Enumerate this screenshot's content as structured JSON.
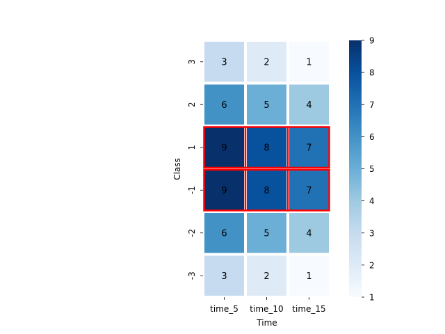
{
  "chart_data": {
    "type": "heatmap",
    "title": "",
    "xlabel": "Time",
    "ylabel": "Class",
    "x_categories": [
      "time_5",
      "time_10",
      "time_15"
    ],
    "y_categories": [
      "3",
      "2",
      "1",
      "-1",
      "-2",
      "-3"
    ],
    "values": [
      [
        3,
        2,
        1
      ],
      [
        6,
        5,
        4
      ],
      [
        9,
        8,
        7
      ],
      [
        9,
        8,
        7
      ],
      [
        6,
        5,
        4
      ],
      [
        3,
        2,
        1
      ]
    ],
    "colormap": "Blues",
    "color_range": [
      1,
      9
    ],
    "colorbar_ticks": [
      "1",
      "2",
      "3",
      "4",
      "5",
      "6",
      "7",
      "8",
      "9"
    ],
    "highlighted_rows": [
      "1",
      "-1"
    ],
    "highlight_color": "#ff0000",
    "cell_separator_color": "#ffffff"
  }
}
